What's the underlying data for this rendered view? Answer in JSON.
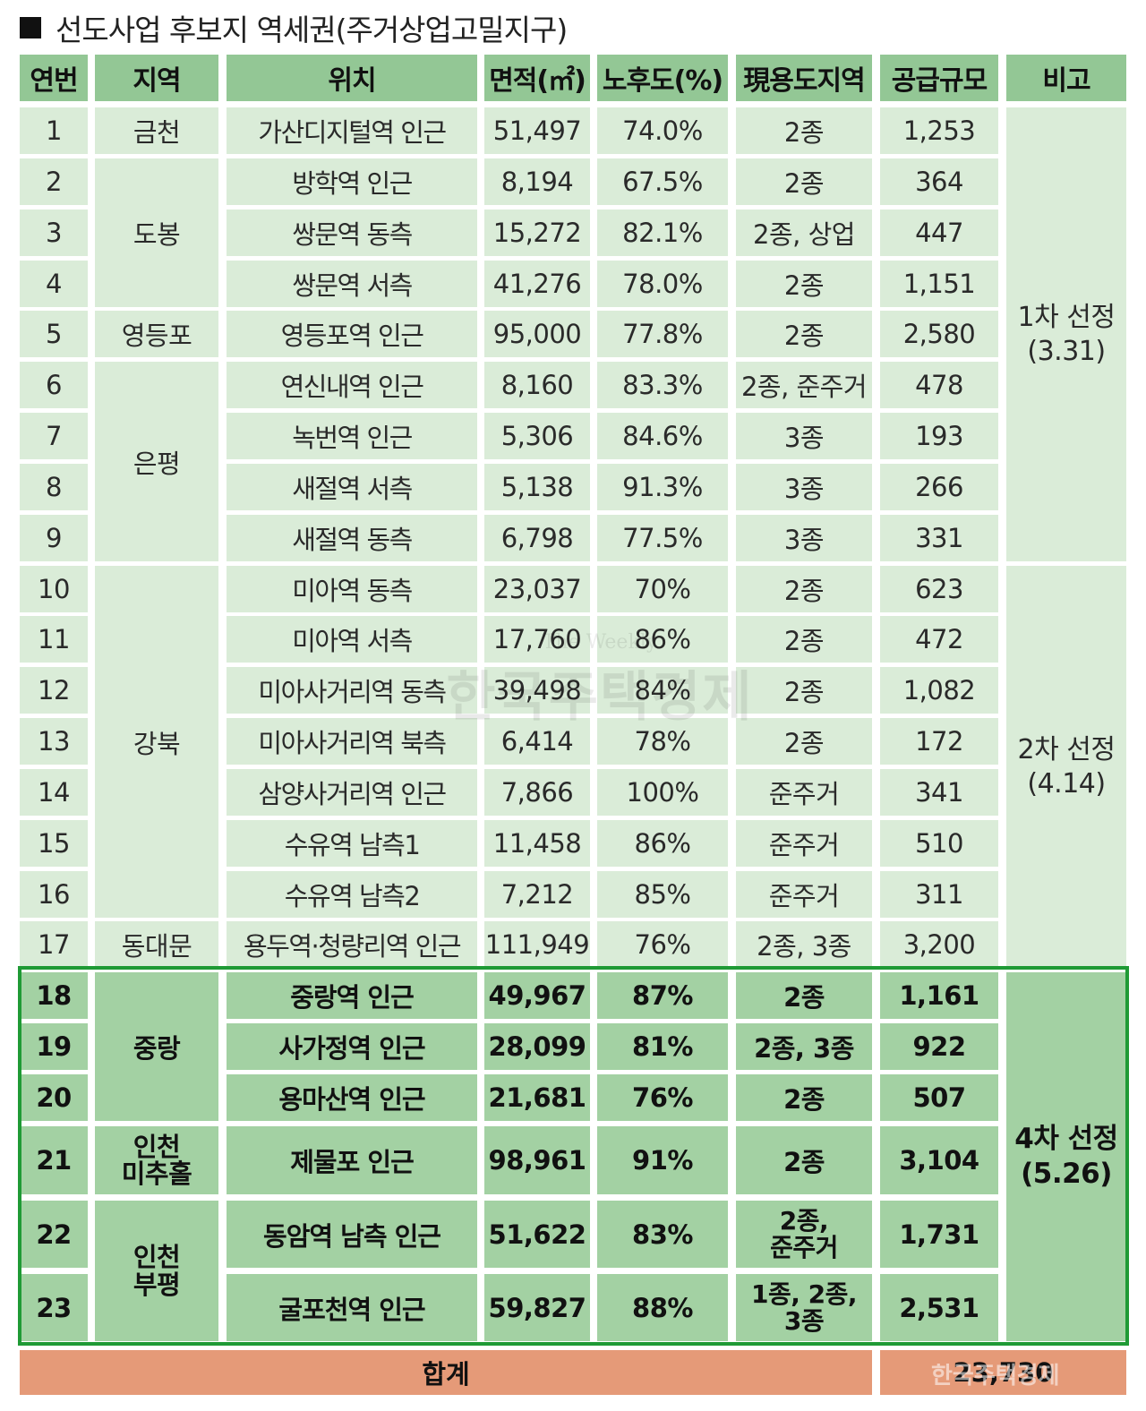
{
  "title": "선도사업 후보지 역세권(주거상업고밀지구)",
  "headers": {
    "no": "연번",
    "region": "지역",
    "location": "위치",
    "area": "면적(㎡)",
    "deterioration": "노후도(%)",
    "zoning": "現용도지역",
    "supply": "공급규모",
    "note": "비고"
  },
  "rows": [
    {
      "no": "1",
      "location": "가산디지털역 인근",
      "area": "51,497",
      "deterioration": "74.0%",
      "zoning": "2종",
      "supply": "1,253"
    },
    {
      "no": "2",
      "location": "방학역 인근",
      "area": "8,194",
      "deterioration": "67.5%",
      "zoning": "2종",
      "supply": "364"
    },
    {
      "no": "3",
      "location": "쌍문역 동측",
      "area": "15,272",
      "deterioration": "82.1%",
      "zoning": "2종, 상업",
      "supply": "447"
    },
    {
      "no": "4",
      "location": "쌍문역 서측",
      "area": "41,276",
      "deterioration": "78.0%",
      "zoning": "2종",
      "supply": "1,151"
    },
    {
      "no": "5",
      "location": "영등포역 인근",
      "area": "95,000",
      "deterioration": "77.8%",
      "zoning": "2종",
      "supply": "2,580"
    },
    {
      "no": "6",
      "location": "연신내역 인근",
      "area": "8,160",
      "deterioration": "83.3%",
      "zoning": "2종, 준주거",
      "supply": "478"
    },
    {
      "no": "7",
      "location": "녹번역 인근",
      "area": "5,306",
      "deterioration": "84.6%",
      "zoning": "3종",
      "supply": "193"
    },
    {
      "no": "8",
      "location": "새절역 서측",
      "area": "5,138",
      "deterioration": "91.3%",
      "zoning": "3종",
      "supply": "266"
    },
    {
      "no": "9",
      "location": "새절역 동측",
      "area": "6,798",
      "deterioration": "77.5%",
      "zoning": "3종",
      "supply": "331"
    },
    {
      "no": "10",
      "location": "미아역 동측",
      "area": "23,037",
      "deterioration": "70%",
      "zoning": "2종",
      "supply": "623"
    },
    {
      "no": "11",
      "location": "미아역 서측",
      "area": "17,760",
      "deterioration": "86%",
      "zoning": "2종",
      "supply": "472"
    },
    {
      "no": "12",
      "location": "미아사거리역 동측",
      "area": "39,498",
      "deterioration": "84%",
      "zoning": "2종",
      "supply": "1,082"
    },
    {
      "no": "13",
      "location": "미아사거리역 북측",
      "area": "6,414",
      "deterioration": "78%",
      "zoning": "2종",
      "supply": "172"
    },
    {
      "no": "14",
      "location": "삼양사거리역 인근",
      "area": "7,866",
      "deterioration": "100%",
      "zoning": "준주거",
      "supply": "341"
    },
    {
      "no": "15",
      "location": "수유역 남측1",
      "area": "11,458",
      "deterioration": "86%",
      "zoning": "준주거",
      "supply": "510"
    },
    {
      "no": "16",
      "location": "수유역 남측2",
      "area": "7,212",
      "deterioration": "85%",
      "zoning": "준주거",
      "supply": "311"
    },
    {
      "no": "17",
      "location": "용두역·청량리역 인근",
      "area": "111,949",
      "deterioration": "76%",
      "zoning": "2종, 3종",
      "supply": "3,200"
    },
    {
      "no": "18",
      "location": "중랑역 인근",
      "area": "49,967",
      "deterioration": "87%",
      "zoning": "2종",
      "supply": "1,161"
    },
    {
      "no": "19",
      "location": "사가정역 인근",
      "area": "28,099",
      "deterioration": "81%",
      "zoning": "2종, 3종",
      "supply": "922"
    },
    {
      "no": "20",
      "location": "용마산역 인근",
      "area": "21,681",
      "deterioration": "76%",
      "zoning": "2종",
      "supply": "507"
    },
    {
      "no": "21",
      "location": "제물포 인근",
      "area": "98,961",
      "deterioration": "91%",
      "zoning": "2종",
      "supply": "3,104"
    },
    {
      "no": "22",
      "location": "동암역 남측 인근",
      "area": "51,622",
      "deterioration": "83%",
      "zoning": "2종,\n준주거",
      "supply": "1,731"
    },
    {
      "no": "23",
      "location": "굴포천역 인근",
      "area": "59,827",
      "deterioration": "88%",
      "zoning": "1종, 2종,\n3종",
      "supply": "2,531"
    }
  ],
  "regions": [
    "금천",
    "도봉",
    "영등포",
    "은평",
    "강북",
    "동대문",
    "중랑",
    "인천\n미추홀",
    "인천\n부평"
  ],
  "notes": [
    "1차 선정\n(3.31)",
    "2차 선정\n(4.14)",
    "4차 선정\n(5.26)"
  ],
  "total": {
    "label": "합계",
    "value": "23,730"
  },
  "watermark": {
    "small": "The Weekly",
    "big": "한국주택경제"
  },
  "colors": {
    "header": "#93c795",
    "row": "#daecd8",
    "highlight_row": "#a3d1a3",
    "total": "#e59a78",
    "frame": "#1f9a35"
  }
}
